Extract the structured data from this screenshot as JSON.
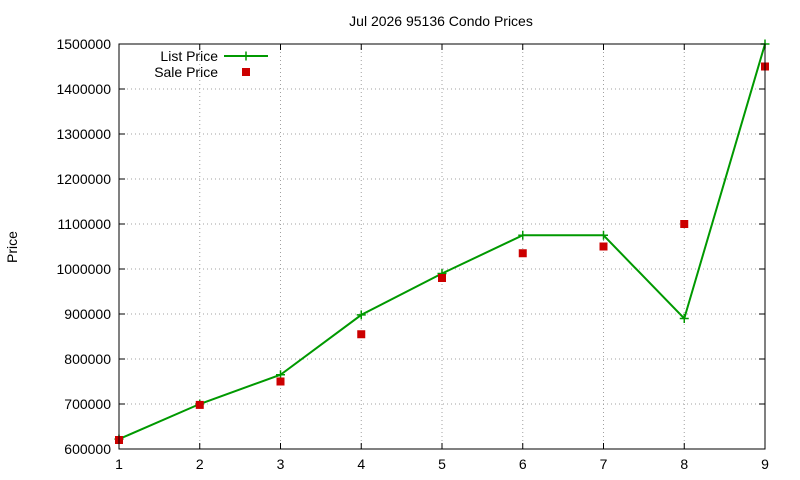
{
  "chart_data": {
    "type": "line",
    "title": "Jul 2026 95136 Condo Prices",
    "xlabel": "",
    "ylabel": "Price",
    "x": [
      1,
      2,
      3,
      4,
      5,
      6,
      7,
      8,
      9
    ],
    "xlim": [
      1,
      9
    ],
    "ylim": [
      600000,
      1500000
    ],
    "xticks": [
      1,
      2,
      3,
      4,
      5,
      6,
      7,
      8,
      9
    ],
    "yticks": [
      600000,
      700000,
      800000,
      900000,
      1000000,
      1100000,
      1200000,
      1300000,
      1400000,
      1500000
    ],
    "grid": true,
    "legend_position": "top-left",
    "series": [
      {
        "name": "List Price",
        "style": "line-points",
        "marker": "plus",
        "color": "#009900",
        "values": [
          622000,
          700000,
          765000,
          898000,
          990000,
          1075000,
          1075000,
          890000,
          1500000
        ]
      },
      {
        "name": "Sale Price",
        "style": "points",
        "marker": "square",
        "color": "#cc0000",
        "values": [
          620000,
          698000,
          750000,
          855000,
          980000,
          1035000,
          1050000,
          1100000,
          1450000
        ]
      }
    ]
  }
}
